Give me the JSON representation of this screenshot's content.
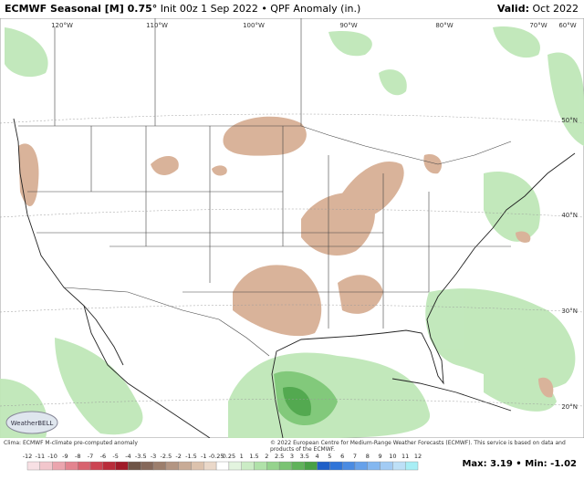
{
  "header": {
    "title": "ECMWF Seasonal [M] 0.75°",
    "subtitle": "Init 00z 1 Sep 2022 • QPF Anomaly (in.)",
    "valid_label": "Valid:",
    "valid": "Oct 2022"
  },
  "map": {
    "lon_labels": [
      "120°W",
      "110°W",
      "100°W",
      "90°W",
      "80°W",
      "70°W",
      "60°W"
    ],
    "lat_labels": [
      "50°N",
      "40°N",
      "30°N",
      "20°N"
    ],
    "logo": "WeatherBELL"
  },
  "footer": {
    "clima": "Clima: ECMWF M-climate pre-computed anomaly",
    "copyright": "© 2022 European Centre for Medium-Range Weather Forecasts (ECMWF). This service is based on data and products of the ECMWF."
  },
  "stats": {
    "max_label": "Max:",
    "max": 3.19,
    "separator": "•",
    "min_label": "Min:",
    "min": -1.02
  },
  "legend": {
    "labels": [
      -12,
      -11,
      -10,
      -9,
      -8,
      -7,
      -6,
      -5,
      -4,
      -3.5,
      -3,
      -2.5,
      -2,
      -1.5,
      -1,
      -0.25,
      0.25,
      1,
      1.5,
      2,
      2.5,
      3,
      3.5,
      4,
      5,
      6,
      7,
      8,
      9,
      10,
      11,
      12
    ],
    "colors": [
      "#f7e0e4",
      "#f2c6cc",
      "#eba5ae",
      "#e3848f",
      "#d8636f",
      "#cc4452",
      "#b92c3a",
      "#a01a28",
      "#6e5446",
      "#85685a",
      "#9c7e6c",
      "#b39582",
      "#c8ab96",
      "#dcc2ad",
      "#ead8c9",
      "#ffffff",
      "#e3f4df",
      "#cbecc5",
      "#b0e2a9",
      "#95d38d",
      "#7ac373",
      "#60b35a",
      "#48a045",
      "#1f5fc7",
      "#2f74d8",
      "#4a8be2",
      "#66a1ea",
      "#84b7f0",
      "#a2cbf4",
      "#bde0f7",
      "#a8eef5"
    ]
  }
}
